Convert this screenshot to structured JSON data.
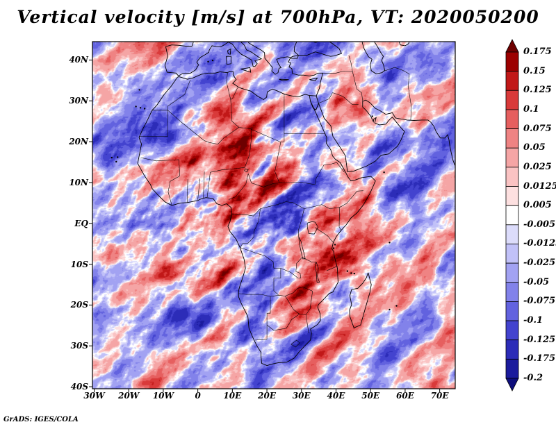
{
  "header": {
    "title": "Vertical velocity [m/s] at 700hPa, VT: 2020050200"
  },
  "footer": {
    "attribution": "GrADS: IGES/COLA"
  },
  "chart_data": {
    "type": "heatmap",
    "title": "Vertical velocity [m/s] at 700hPa, VT: 2020050200",
    "variable": "Vertical velocity",
    "units": "m/s",
    "pressure_level": "700hPa",
    "valid_time": "2020050200",
    "region": "Africa and adjacent oceans / Middle East",
    "grid": false,
    "legend_position": "right",
    "lon_range": [
      -30.5,
      74.5
    ],
    "lat_range": [
      -40.5,
      44.5
    ],
    "x_ticks": [
      {
        "label": "30W",
        "lon": -30
      },
      {
        "label": "20W",
        "lon": -20
      },
      {
        "label": "10W",
        "lon": -10
      },
      {
        "label": "0",
        "lon": 0
      },
      {
        "label": "10E",
        "lon": 10
      },
      {
        "label": "20E",
        "lon": 20
      },
      {
        "label": "30E",
        "lon": 30
      },
      {
        "label": "40E",
        "lon": 40
      },
      {
        "label": "50E",
        "lon": 50
      },
      {
        "label": "60E",
        "lon": 60
      },
      {
        "label": "70E",
        "lon": 70
      }
    ],
    "y_ticks": [
      {
        "label": "40N",
        "lat": 40
      },
      {
        "label": "30N",
        "lat": 30
      },
      {
        "label": "20N",
        "lat": 20
      },
      {
        "label": "10N",
        "lat": 10
      },
      {
        "label": "EQ",
        "lat": 0
      },
      {
        "label": "10S",
        "lat": -10
      },
      {
        "label": "20S",
        "lat": -20
      },
      {
        "label": "30S",
        "lat": -30
      },
      {
        "label": "40S",
        "lat": -40
      }
    ],
    "colorbar": {
      "orientation": "vertical",
      "labels_top_to_bottom": [
        "0.175",
        "0.15",
        "0.125",
        "0.1",
        "0.075",
        "0.05",
        "0.025",
        "0.0125",
        "0.005",
        "-0.005",
        "-0.0125",
        "-0.025",
        "-0.05",
        "-0.075",
        "-0.1",
        "-0.125",
        "-0.175",
        "-0.2"
      ],
      "colors_top_to_bottom": [
        "#6e0000",
        "#9c0000",
        "#c11818",
        "#d93a3a",
        "#e65f5f",
        "#ef8383",
        "#f5a5a5",
        "#fac3c3",
        "#fde0e0",
        "#ffffff",
        "#dcdcfb",
        "#c1c1f8",
        "#a2a2f2",
        "#8282ea",
        "#6262df",
        "#4343cf",
        "#2c2cb8",
        "#1b1b9d",
        "#0e0e7c"
      ]
    },
    "field_character": "fine-scale noisy alternating red (positive) / blue (negative) streaks covering whole domain, strongest over tropical Africa"
  }
}
